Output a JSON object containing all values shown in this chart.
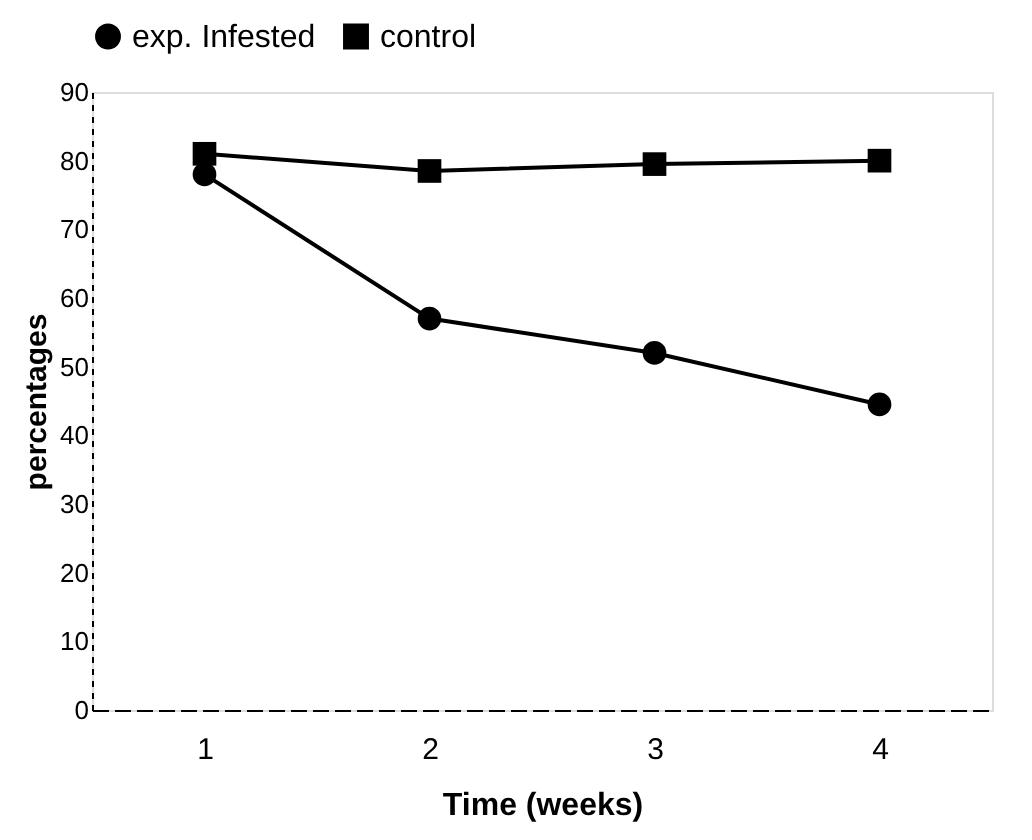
{
  "chart_data": {
    "type": "line",
    "xlabel": "Time (weeks)",
    "ylabel": "percentages",
    "categories": [
      "1",
      "2",
      "3",
      "4"
    ],
    "series": [
      {
        "name": "exp. Infested",
        "color": "#000000",
        "marker": "circle",
        "values": [
          78,
          57,
          52,
          44.5
        ]
      },
      {
        "name": "control",
        "color": "#000000",
        "marker": "square",
        "values": [
          81,
          78.5,
          79.5,
          80
        ]
      }
    ],
    "ylim": [
      0,
      90
    ],
    "yticks": [
      0,
      10,
      20,
      30,
      40,
      50,
      60,
      70,
      80,
      90
    ],
    "grid": false,
    "legend": "top"
  }
}
